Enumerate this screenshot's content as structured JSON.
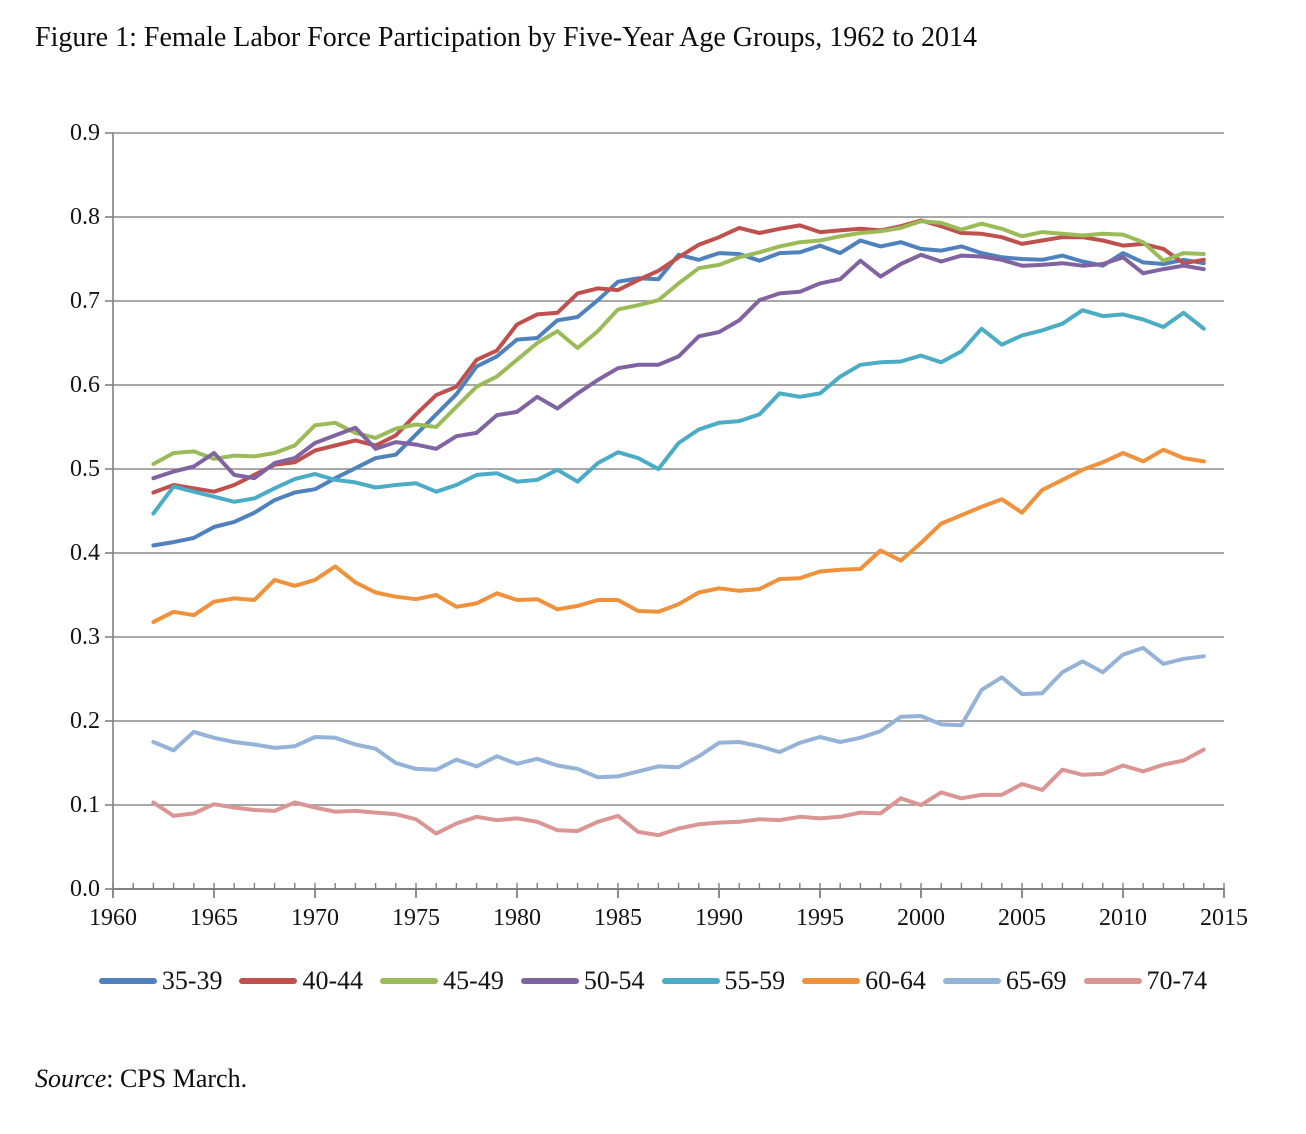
{
  "figure": {
    "title": "Figure 1: Female Labor Force Participation by Five-Year Age Groups, 1962 to 2014",
    "source_italic": "Source",
    "source_rest": ": CPS March."
  },
  "chart_data": {
    "type": "line",
    "title": "Figure 1: Female Labor Force Participation by Five-Year Age Groups, 1962 to 2014",
    "xlabel": "",
    "ylabel": "",
    "xlim": [
      1960,
      2015
    ],
    "ylim": [
      0.0,
      0.9
    ],
    "x_ticks": [
      1960,
      1965,
      1970,
      1975,
      1980,
      1985,
      1990,
      1995,
      2000,
      2005,
      2010,
      2015
    ],
    "y_ticks": [
      0.0,
      0.1,
      0.2,
      0.3,
      0.4,
      0.5,
      0.6,
      0.7,
      0.8,
      0.9
    ],
    "grid": true,
    "legend_position": "bottom",
    "x": [
      1962,
      1963,
      1964,
      1965,
      1966,
      1967,
      1968,
      1969,
      1970,
      1971,
      1972,
      1973,
      1974,
      1975,
      1976,
      1977,
      1978,
      1979,
      1980,
      1981,
      1982,
      1983,
      1984,
      1985,
      1986,
      1987,
      1988,
      1989,
      1990,
      1991,
      1992,
      1993,
      1994,
      1995,
      1996,
      1997,
      1998,
      1999,
      2000,
      2001,
      2002,
      2003,
      2004,
      2005,
      2006,
      2007,
      2008,
      2009,
      2010,
      2011,
      2012,
      2013,
      2014
    ],
    "series": [
      {
        "name": "35-39",
        "color": "#4F81BD",
        "values": [
          0.409,
          0.413,
          0.418,
          0.431,
          0.437,
          0.448,
          0.463,
          0.472,
          0.476,
          0.489,
          0.501,
          0.513,
          0.517,
          0.541,
          0.565,
          0.589,
          0.622,
          0.634,
          0.654,
          0.656,
          0.677,
          0.681,
          0.701,
          0.723,
          0.727,
          0.726,
          0.755,
          0.749,
          0.757,
          0.756,
          0.748,
          0.757,
          0.758,
          0.766,
          0.757,
          0.772,
          0.765,
          0.77,
          0.762,
          0.76,
          0.765,
          0.757,
          0.752,
          0.75,
          0.749,
          0.754,
          0.747,
          0.742,
          0.757,
          0.746,
          0.744,
          0.749,
          0.745
        ]
      },
      {
        "name": "40-44",
        "color": "#C0504D",
        "values": [
          0.472,
          0.481,
          0.477,
          0.473,
          0.481,
          0.493,
          0.505,
          0.508,
          0.522,
          0.528,
          0.534,
          0.528,
          0.54,
          0.565,
          0.588,
          0.598,
          0.63,
          0.641,
          0.672,
          0.684,
          0.686,
          0.709,
          0.715,
          0.713,
          0.725,
          0.736,
          0.752,
          0.767,
          0.776,
          0.787,
          0.781,
          0.786,
          0.79,
          0.782,
          0.784,
          0.786,
          0.784,
          0.789,
          0.796,
          0.789,
          0.781,
          0.78,
          0.776,
          0.768,
          0.772,
          0.776,
          0.776,
          0.772,
          0.766,
          0.768,
          0.762,
          0.745,
          0.749
        ]
      },
      {
        "name": "45-49",
        "color": "#9BBB59",
        "values": [
          0.506,
          0.519,
          0.521,
          0.512,
          0.516,
          0.515,
          0.519,
          0.528,
          0.552,
          0.555,
          0.543,
          0.537,
          0.548,
          0.553,
          0.55,
          0.574,
          0.598,
          0.61,
          0.63,
          0.65,
          0.664,
          0.644,
          0.664,
          0.69,
          0.695,
          0.701,
          0.721,
          0.739,
          0.743,
          0.752,
          0.758,
          0.765,
          0.77,
          0.772,
          0.777,
          0.781,
          0.783,
          0.787,
          0.795,
          0.793,
          0.785,
          0.792,
          0.786,
          0.777,
          0.782,
          0.78,
          0.778,
          0.78,
          0.779,
          0.77,
          0.748,
          0.757,
          0.756
        ]
      },
      {
        "name": "50-54",
        "color": "#8064A2",
        "values": [
          0.489,
          0.497,
          0.503,
          0.519,
          0.493,
          0.489,
          0.507,
          0.513,
          0.531,
          0.54,
          0.549,
          0.524,
          0.532,
          0.529,
          0.524,
          0.539,
          0.543,
          0.564,
          0.568,
          0.586,
          0.572,
          0.59,
          0.606,
          0.62,
          0.624,
          0.624,
          0.634,
          0.658,
          0.663,
          0.677,
          0.701,
          0.709,
          0.711,
          0.721,
          0.726,
          0.748,
          0.729,
          0.744,
          0.755,
          0.747,
          0.754,
          0.753,
          0.749,
          0.742,
          0.743,
          0.745,
          0.742,
          0.744,
          0.752,
          0.733,
          0.738,
          0.742,
          0.738
        ]
      },
      {
        "name": "55-59",
        "color": "#4BACC6",
        "values": [
          0.447,
          0.479,
          0.473,
          0.467,
          0.461,
          0.465,
          0.477,
          0.488,
          0.494,
          0.487,
          0.484,
          0.478,
          0.481,
          0.483,
          0.473,
          0.481,
          0.493,
          0.495,
          0.485,
          0.487,
          0.499,
          0.485,
          0.507,
          0.52,
          0.513,
          0.5,
          0.531,
          0.547,
          0.555,
          0.557,
          0.565,
          0.59,
          0.586,
          0.59,
          0.61,
          0.624,
          0.627,
          0.628,
          0.635,
          0.627,
          0.64,
          0.667,
          0.648,
          0.659,
          0.665,
          0.673,
          0.689,
          0.682,
          0.684,
          0.678,
          0.669,
          0.686,
          0.667
        ]
      },
      {
        "name": "60-64",
        "color": "#F0913C",
        "values": [
          0.318,
          0.33,
          0.326,
          0.342,
          0.346,
          0.344,
          0.368,
          0.361,
          0.368,
          0.384,
          0.365,
          0.353,
          0.348,
          0.345,
          0.35,
          0.336,
          0.34,
          0.352,
          0.344,
          0.345,
          0.333,
          0.337,
          0.344,
          0.344,
          0.331,
          0.33,
          0.339,
          0.353,
          0.358,
          0.355,
          0.357,
          0.369,
          0.37,
          0.378,
          0.38,
          0.381,
          0.403,
          0.391,
          0.412,
          0.435,
          0.445,
          0.455,
          0.464,
          0.448,
          0.475,
          0.487,
          0.499,
          0.508,
          0.519,
          0.509,
          0.523,
          0.513,
          0.509
        ]
      },
      {
        "name": "65-69",
        "color": "#95B3D7",
        "values": [
          0.175,
          0.165,
          0.187,
          0.18,
          0.175,
          0.172,
          0.168,
          0.17,
          0.181,
          0.18,
          0.172,
          0.167,
          0.15,
          0.143,
          0.142,
          0.154,
          0.146,
          0.158,
          0.149,
          0.155,
          0.147,
          0.143,
          0.133,
          0.134,
          0.14,
          0.146,
          0.145,
          0.158,
          0.174,
          0.175,
          0.17,
          0.163,
          0.174,
          0.181,
          0.175,
          0.18,
          0.188,
          0.205,
          0.206,
          0.196,
          0.195,
          0.237,
          0.252,
          0.232,
          0.233,
          0.258,
          0.271,
          0.258,
          0.279,
          0.287,
          0.268,
          0.274,
          0.277
        ]
      },
      {
        "name": "70-74",
        "color": "#D99694",
        "values": [
          0.103,
          0.087,
          0.09,
          0.101,
          0.097,
          0.094,
          0.093,
          0.103,
          0.097,
          0.092,
          0.093,
          0.091,
          0.089,
          0.083,
          0.066,
          0.078,
          0.086,
          0.082,
          0.084,
          0.08,
          0.07,
          0.069,
          0.08,
          0.087,
          0.068,
          0.064,
          0.072,
          0.077,
          0.079,
          0.08,
          0.083,
          0.082,
          0.086,
          0.084,
          0.086,
          0.091,
          0.09,
          0.108,
          0.1,
          0.115,
          0.108,
          0.112,
          0.112,
          0.125,
          0.118,
          0.142,
          0.136,
          0.137,
          0.147,
          0.14,
          0.148,
          0.153,
          0.166
        ]
      }
    ],
    "style": {
      "grid_color": "#8C8C8C",
      "axis_color": "#808080",
      "text_color": "#141414",
      "background": "#FFFFFF",
      "line_width": 4
    }
  }
}
